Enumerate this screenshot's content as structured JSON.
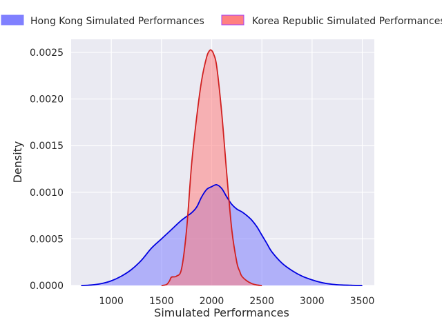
{
  "chart_data": {
    "type": "area",
    "xlabel": "Simulated Performances",
    "ylabel": "Density",
    "xlim": [
      600,
      3620
    ],
    "ylim": [
      0,
      0.00264
    ],
    "x_ticks": [
      1000,
      1500,
      2000,
      2500,
      3000,
      3500
    ],
    "x_tick_labels": [
      "1000",
      "1500",
      "2000",
      "2500",
      "3000",
      "3500"
    ],
    "y_ticks": [
      0,
      0.0005,
      0.001,
      0.0015,
      0.002,
      0.0025
    ],
    "y_tick_labels": [
      "0.0000",
      "0.0005",
      "0.0010",
      "0.0015",
      "0.0020",
      "0.0025"
    ],
    "grid": true,
    "legend_position": "top",
    "background": "#eaeaf2",
    "series": [
      {
        "name": "Hong Kong Simulated Performances",
        "fill_color": "#8080ff",
        "line_color": "#0000e0",
        "x": [
          700,
          800,
          900,
          1000,
          1100,
          1200,
          1300,
          1400,
          1500,
          1600,
          1700,
          1800,
          1850,
          1900,
          1950,
          2000,
          2050,
          2100,
          2150,
          2200,
          2250,
          2300,
          2350,
          2400,
          2450,
          2500,
          2550,
          2600,
          2700,
          2800,
          2900,
          3000,
          3100,
          3200,
          3300,
          3400,
          3500
        ],
        "y": [
          0.0,
          5e-06,
          2e-05,
          5e-05,
          0.0001,
          0.00017,
          0.00027,
          0.0004,
          0.0005,
          0.0006,
          0.0007,
          0.00078,
          0.00084,
          0.00095,
          0.00103,
          0.00106,
          0.00108,
          0.00104,
          0.00095,
          0.00087,
          0.00082,
          0.00079,
          0.00075,
          0.0007,
          0.00063,
          0.00054,
          0.00045,
          0.00036,
          0.00024,
          0.00016,
          0.0001,
          6e-05,
          3e-05,
          1.3e-05,
          5e-06,
          2e-06,
          0.0
        ]
      },
      {
        "name": "Korea Republic Simulated Performances",
        "fill_color": "#ff8080",
        "line_color": "#d02020",
        "x": [
          1500,
          1550,
          1580,
          1600,
          1650,
          1700,
          1750,
          1800,
          1850,
          1900,
          1950,
          1980,
          2000,
          2020,
          2050,
          2100,
          2150,
          2200,
          2250,
          2280,
          2300,
          2350,
          2400,
          2450,
          2500
        ],
        "y": [
          0.0,
          1e-05,
          5e-05,
          9e-05,
          0.0001,
          0.00018,
          0.0006,
          0.0013,
          0.0018,
          0.0022,
          0.00245,
          0.00252,
          0.00252,
          0.00248,
          0.00235,
          0.00185,
          0.0012,
          0.0006,
          0.00025,
          0.00015,
          0.0001,
          5e-05,
          2e-05,
          5e-06,
          0.0
        ]
      }
    ]
  }
}
